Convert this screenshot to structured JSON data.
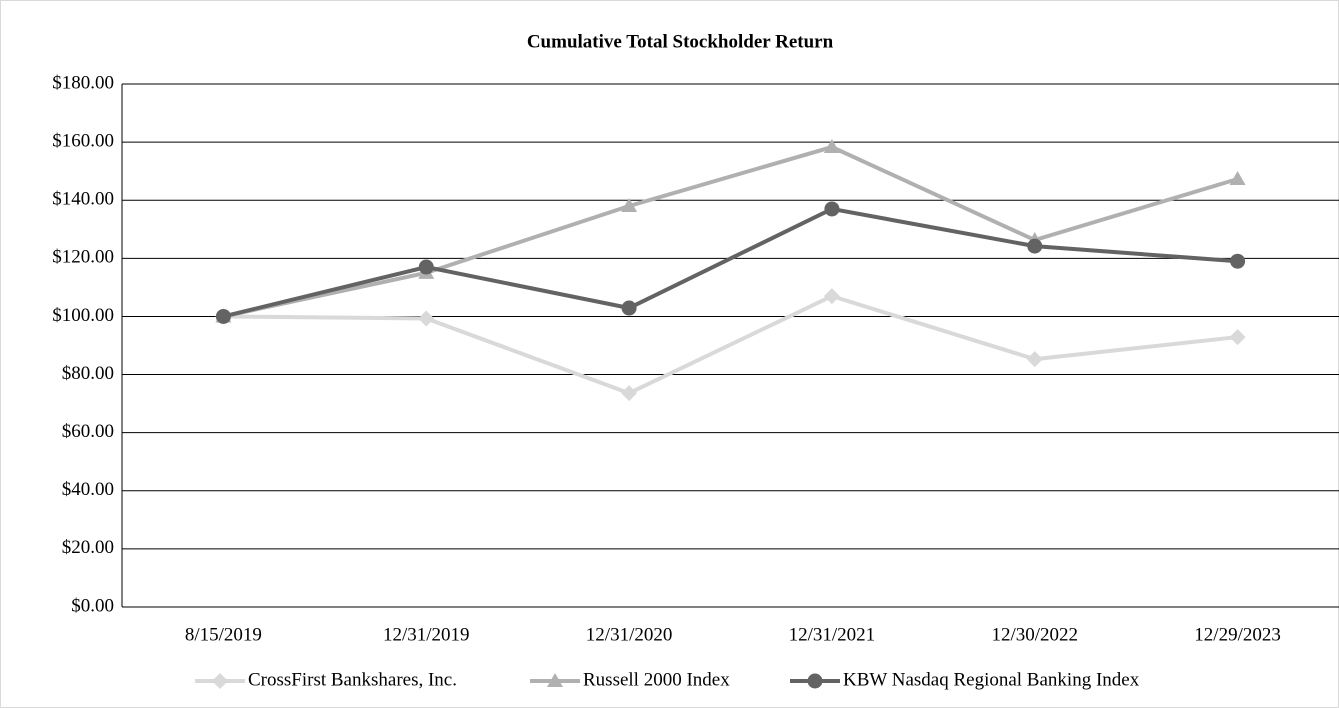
{
  "chart_data": {
    "type": "line",
    "title": "Cumulative Total Stockholder Return",
    "categories": [
      "8/15/2019",
      "12/31/2019",
      "12/31/2020",
      "12/31/2021",
      "12/30/2022",
      "12/29/2023"
    ],
    "series": [
      {
        "name": "CrossFirst Bankshares, Inc.",
        "color": "#d9d9d9",
        "marker": "diamond",
        "values": [
          100,
          99.3,
          73.6,
          107,
          85.3,
          92.9
        ]
      },
      {
        "name": "Russell 2000 Index",
        "color": "#b0b0b0",
        "marker": "triangle",
        "values": [
          100,
          115,
          138,
          158.3,
          126.3,
          147.3
        ]
      },
      {
        "name": "KBW Nasdaq Regional Banking Index",
        "color": "#636363",
        "marker": "circle",
        "values": [
          100,
          117,
          102.9,
          137,
          124.2,
          119
        ]
      }
    ],
    "ylim": [
      0,
      180
    ],
    "yticks": [
      {
        "value": 0,
        "label": "$0.00"
      },
      {
        "value": 20,
        "label": "$20.00"
      },
      {
        "value": 40,
        "label": "$40.00"
      },
      {
        "value": 60,
        "label": "$60.00"
      },
      {
        "value": 80,
        "label": "$80.00"
      },
      {
        "value": 100,
        "label": "$100.00"
      },
      {
        "value": 120,
        "label": "$120.00"
      },
      {
        "value": 140,
        "label": "$140.00"
      },
      {
        "value": 160,
        "label": "$160.00"
      },
      {
        "value": 180,
        "label": "$180.00"
      }
    ],
    "grid": true,
    "legend": "bottom"
  }
}
